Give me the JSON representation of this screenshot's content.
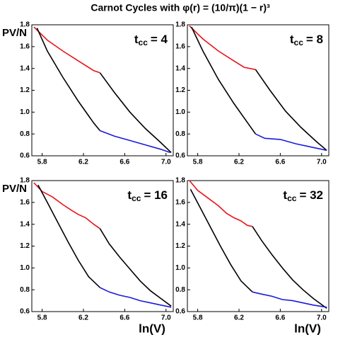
{
  "title": "Carnot Cycles with φ(r) = (10/π)(1 − r)³",
  "chart_data": [
    {
      "type": "line",
      "annotation": {
        "main": "t",
        "sub": "cc",
        "rest": "= 4"
      },
      "ylabel": "PV/N",
      "xlim": [
        5.7,
        7.07
      ],
      "ylim": [
        0.6,
        1.8
      ],
      "xticks": [
        5.8,
        6.2,
        6.6,
        {
          "value": 7,
          "label": "7.0"
        }
      ],
      "yticks": [
        0.6,
        0.8,
        {
          "value": 1,
          "label": "1.0"
        },
        1.2,
        1.4,
        1.6,
        1.8
      ],
      "series": [
        {
          "color": "#e8141b",
          "x": [
            5.72,
            5.85,
            6.0,
            6.15,
            6.3,
            6.36
          ],
          "values": [
            1.78,
            1.66,
            1.56,
            1.47,
            1.38,
            1.36
          ]
        },
        {
          "color": "#000000",
          "x": [
            5.75,
            5.85,
            6.0,
            6.15,
            6.3,
            6.36
          ],
          "values": [
            1.77,
            1.56,
            1.32,
            1.1,
            0.9,
            0.83
          ]
        },
        {
          "color": "#000000",
          "x": [
            6.36,
            6.5,
            6.65,
            6.8,
            6.95,
            7.05
          ],
          "values": [
            1.36,
            1.18,
            1.0,
            0.85,
            0.72,
            0.63
          ]
        },
        {
          "color": "#1a1adb",
          "x": [
            6.36,
            6.5,
            6.65,
            6.8,
            6.95,
            7.04
          ],
          "values": [
            0.83,
            0.78,
            0.74,
            0.7,
            0.66,
            0.63
          ]
        }
      ]
    },
    {
      "type": "line",
      "annotation": {
        "main": "t",
        "sub": "cc",
        "rest": "= 8"
      },
      "xlim": [
        5.7,
        7.07
      ],
      "ylim": [
        0.6,
        1.8
      ],
      "xticks": [
        5.8,
        6.2,
        6.6,
        {
          "value": 7,
          "label": "7.0"
        }
      ],
      "yticks": [
        0.6,
        0.8,
        {
          "value": 1,
          "label": "1.0"
        },
        1.2,
        1.4,
        1.6,
        1.8
      ],
      "series": [
        {
          "color": "#e8141b",
          "x": [
            5.72,
            5.85,
            6.0,
            6.15,
            6.25,
            6.36
          ],
          "values": [
            1.79,
            1.67,
            1.56,
            1.47,
            1.41,
            1.39
          ]
        },
        {
          "color": "#000000",
          "x": [
            5.74,
            5.85,
            6.0,
            6.15,
            6.3,
            6.36
          ],
          "values": [
            1.78,
            1.56,
            1.3,
            1.08,
            0.88,
            0.8
          ]
        },
        {
          "color": "#000000",
          "x": [
            6.36,
            6.5,
            6.65,
            6.8,
            6.95,
            7.05
          ],
          "values": [
            1.39,
            1.2,
            1.01,
            0.86,
            0.73,
            0.65
          ]
        },
        {
          "color": "#1a1adb",
          "x": [
            6.36,
            6.45,
            6.6,
            6.75,
            6.9,
            7.05
          ],
          "values": [
            0.8,
            0.76,
            0.75,
            0.71,
            0.68,
            0.65
          ]
        }
      ]
    },
    {
      "type": "line",
      "annotation": {
        "main": "t",
        "sub": "cc",
        "rest": "= 16"
      },
      "ylabel": "PV/N",
      "xlabel": "ln(V)",
      "xlim": [
        5.7,
        7.07
      ],
      "ylim": [
        0.6,
        1.8
      ],
      "xticks": [
        5.8,
        6.2,
        6.6,
        {
          "value": 7,
          "label": "7.0"
        }
      ],
      "yticks": [
        0.6,
        0.8,
        {
          "value": 1,
          "label": "1.0"
        },
        1.2,
        1.4,
        1.6,
        1.8
      ],
      "series": [
        {
          "color": "#e8141b",
          "x": [
            5.72,
            5.8,
            5.9,
            6.0,
            6.08,
            6.15,
            6.22,
            6.3,
            6.36
          ],
          "values": [
            1.78,
            1.7,
            1.65,
            1.58,
            1.53,
            1.49,
            1.46,
            1.4,
            1.36
          ]
        },
        {
          "color": "#000000",
          "x": [
            5.76,
            5.85,
            5.95,
            6.05,
            6.15,
            6.25,
            6.36
          ],
          "values": [
            1.76,
            1.6,
            1.42,
            1.24,
            1.07,
            0.92,
            0.82
          ]
        },
        {
          "color": "#000000",
          "x": [
            6.36,
            6.45,
            6.55,
            6.65,
            6.75,
            6.85,
            6.95,
            7.05
          ],
          "values": [
            1.36,
            1.22,
            1.1,
            0.99,
            0.88,
            0.79,
            0.72,
            0.65
          ]
        },
        {
          "color": "#1a1adb",
          "x": [
            6.36,
            6.45,
            6.55,
            6.65,
            6.75,
            6.85,
            6.95,
            7.05
          ],
          "values": [
            0.82,
            0.78,
            0.75,
            0.73,
            0.7,
            0.68,
            0.66,
            0.64
          ]
        }
      ]
    },
    {
      "type": "line",
      "annotation": {
        "main": "t",
        "sub": "cc",
        "rest": "= 32"
      },
      "xlabel": "ln(V)",
      "xlim": [
        5.7,
        7.07
      ],
      "ylim": [
        0.6,
        1.8
      ],
      "xticks": [
        5.8,
        6.2,
        6.6,
        {
          "value": 7,
          "label": "7.0"
        }
      ],
      "yticks": [
        0.6,
        0.8,
        {
          "value": 1,
          "label": "1.0"
        },
        1.2,
        1.4,
        1.6,
        1.8
      ],
      "series": [
        {
          "color": "#e8141b",
          "x": [
            5.72,
            5.8,
            5.9,
            6.0,
            6.08,
            6.15,
            6.22,
            6.28,
            6.33
          ],
          "values": [
            1.8,
            1.71,
            1.64,
            1.57,
            1.5,
            1.46,
            1.43,
            1.39,
            1.38
          ]
        },
        {
          "color": "#000000",
          "x": [
            5.73,
            5.82,
            5.92,
            6.02,
            6.12,
            6.22,
            6.33
          ],
          "values": [
            1.72,
            1.56,
            1.38,
            1.2,
            1.03,
            0.88,
            0.78
          ]
        },
        {
          "color": "#000000",
          "x": [
            6.33,
            6.42,
            6.52,
            6.62,
            6.72,
            6.82,
            6.92,
            7.05
          ],
          "values": [
            1.38,
            1.25,
            1.12,
            1.0,
            0.89,
            0.8,
            0.72,
            0.63
          ]
        },
        {
          "color": "#1a1adb",
          "x": [
            6.33,
            6.42,
            6.52,
            6.62,
            6.72,
            6.82,
            6.92,
            7.05
          ],
          "values": [
            0.78,
            0.76,
            0.74,
            0.71,
            0.7,
            0.68,
            0.66,
            0.64
          ]
        }
      ]
    }
  ]
}
